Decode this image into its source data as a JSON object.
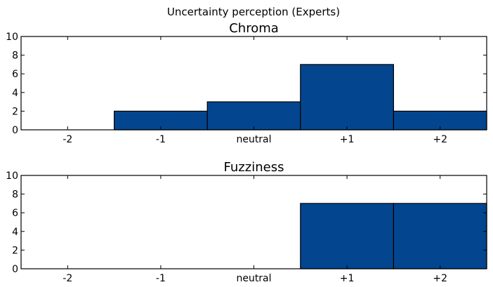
{
  "figure": {
    "suptitle": "Uncertainty perception (Experts)"
  },
  "colors": {
    "bar_fill": "#03468F",
    "bar_edge": "#000000",
    "frame": "#000000",
    "background": "#FFFFFF"
  },
  "chart_data": [
    {
      "type": "bar",
      "title": "Chroma",
      "categories": [
        "-2",
        "-1",
        "neutral",
        "+1",
        "+2"
      ],
      "values": [
        0,
        2,
        3,
        7,
        2
      ],
      "xlabel": "",
      "ylabel": "",
      "ylim": [
        0,
        10
      ],
      "yticks": [
        0,
        2,
        4,
        6,
        8,
        10
      ],
      "grid": false,
      "bar_width": 1.0
    },
    {
      "type": "bar",
      "title": "Fuzziness",
      "categories": [
        "-2",
        "-1",
        "neutral",
        "+1",
        "+2"
      ],
      "values": [
        0,
        0,
        0,
        7,
        7
      ],
      "xlabel": "",
      "ylabel": "",
      "ylim": [
        0,
        10
      ],
      "yticks": [
        0,
        2,
        4,
        6,
        8,
        10
      ],
      "grid": false,
      "bar_width": 1.0
    }
  ]
}
